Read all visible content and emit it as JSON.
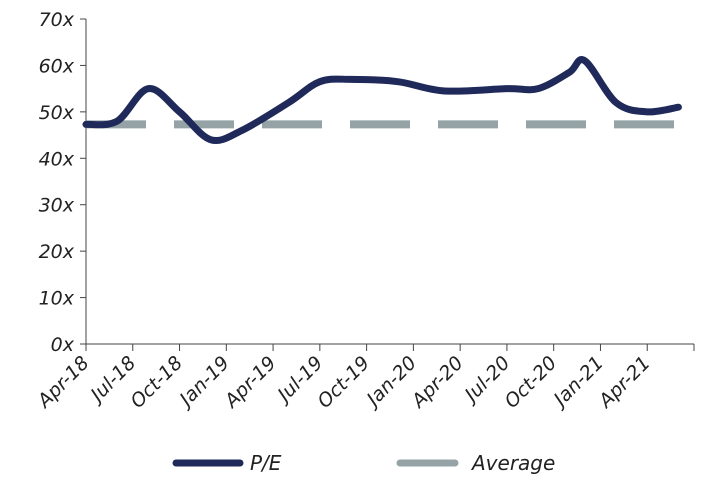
{
  "chart_data": {
    "type": "line",
    "x_labels": [
      "Apr-18",
      "Jul-18",
      "Oct-18",
      "Jan-19",
      "Apr-19",
      "Jul-19",
      "Oct-19",
      "Jan-20",
      "Apr-20",
      "Jul-20",
      "Oct-20",
      "Jan-21",
      "Apr-21"
    ],
    "y_ticks": [
      "0x",
      "10x",
      "20x",
      "30x",
      "40x",
      "50x",
      "60x",
      "70x"
    ],
    "ylim": [
      0,
      70
    ],
    "grid": false,
    "legend_position": "bottom",
    "series": [
      {
        "name": "P/E",
        "color": "#1f2a5a",
        "points": [
          {
            "x": "Apr-18",
            "y": 47.3
          },
          {
            "x": "Jun-18",
            "y": 48.0
          },
          {
            "x": "Aug-18",
            "y": 55.0
          },
          {
            "x": "Oct-18",
            "y": 50.0
          },
          {
            "x": "Dec-18",
            "y": 44.0
          },
          {
            "x": "Feb-19",
            "y": 46.0
          },
          {
            "x": "May-19",
            "y": 52.0
          },
          {
            "x": "Jul-19",
            "y": 56.5
          },
          {
            "x": "Sep-19",
            "y": 57.0
          },
          {
            "x": "Dec-19",
            "y": 56.5
          },
          {
            "x": "Mar-20",
            "y": 54.5
          },
          {
            "x": "Jul-20",
            "y": 55.0
          },
          {
            "x": "Sep-20",
            "y": 55.0
          },
          {
            "x": "Nov-20",
            "y": 58.5
          },
          {
            "x": "Dec-20",
            "y": 61.0
          },
          {
            "x": "Feb-21",
            "y": 52.0
          },
          {
            "x": "Apr-21",
            "y": 50.0
          },
          {
            "x": "Jun-21",
            "y": 51.0
          }
        ]
      },
      {
        "name": "Average",
        "color": "#95a3a6",
        "dashed": true,
        "points": [
          {
            "x": "Apr-18",
            "y": 47.3
          },
          {
            "x": "Jun-21",
            "y": 47.3
          }
        ]
      }
    ]
  }
}
